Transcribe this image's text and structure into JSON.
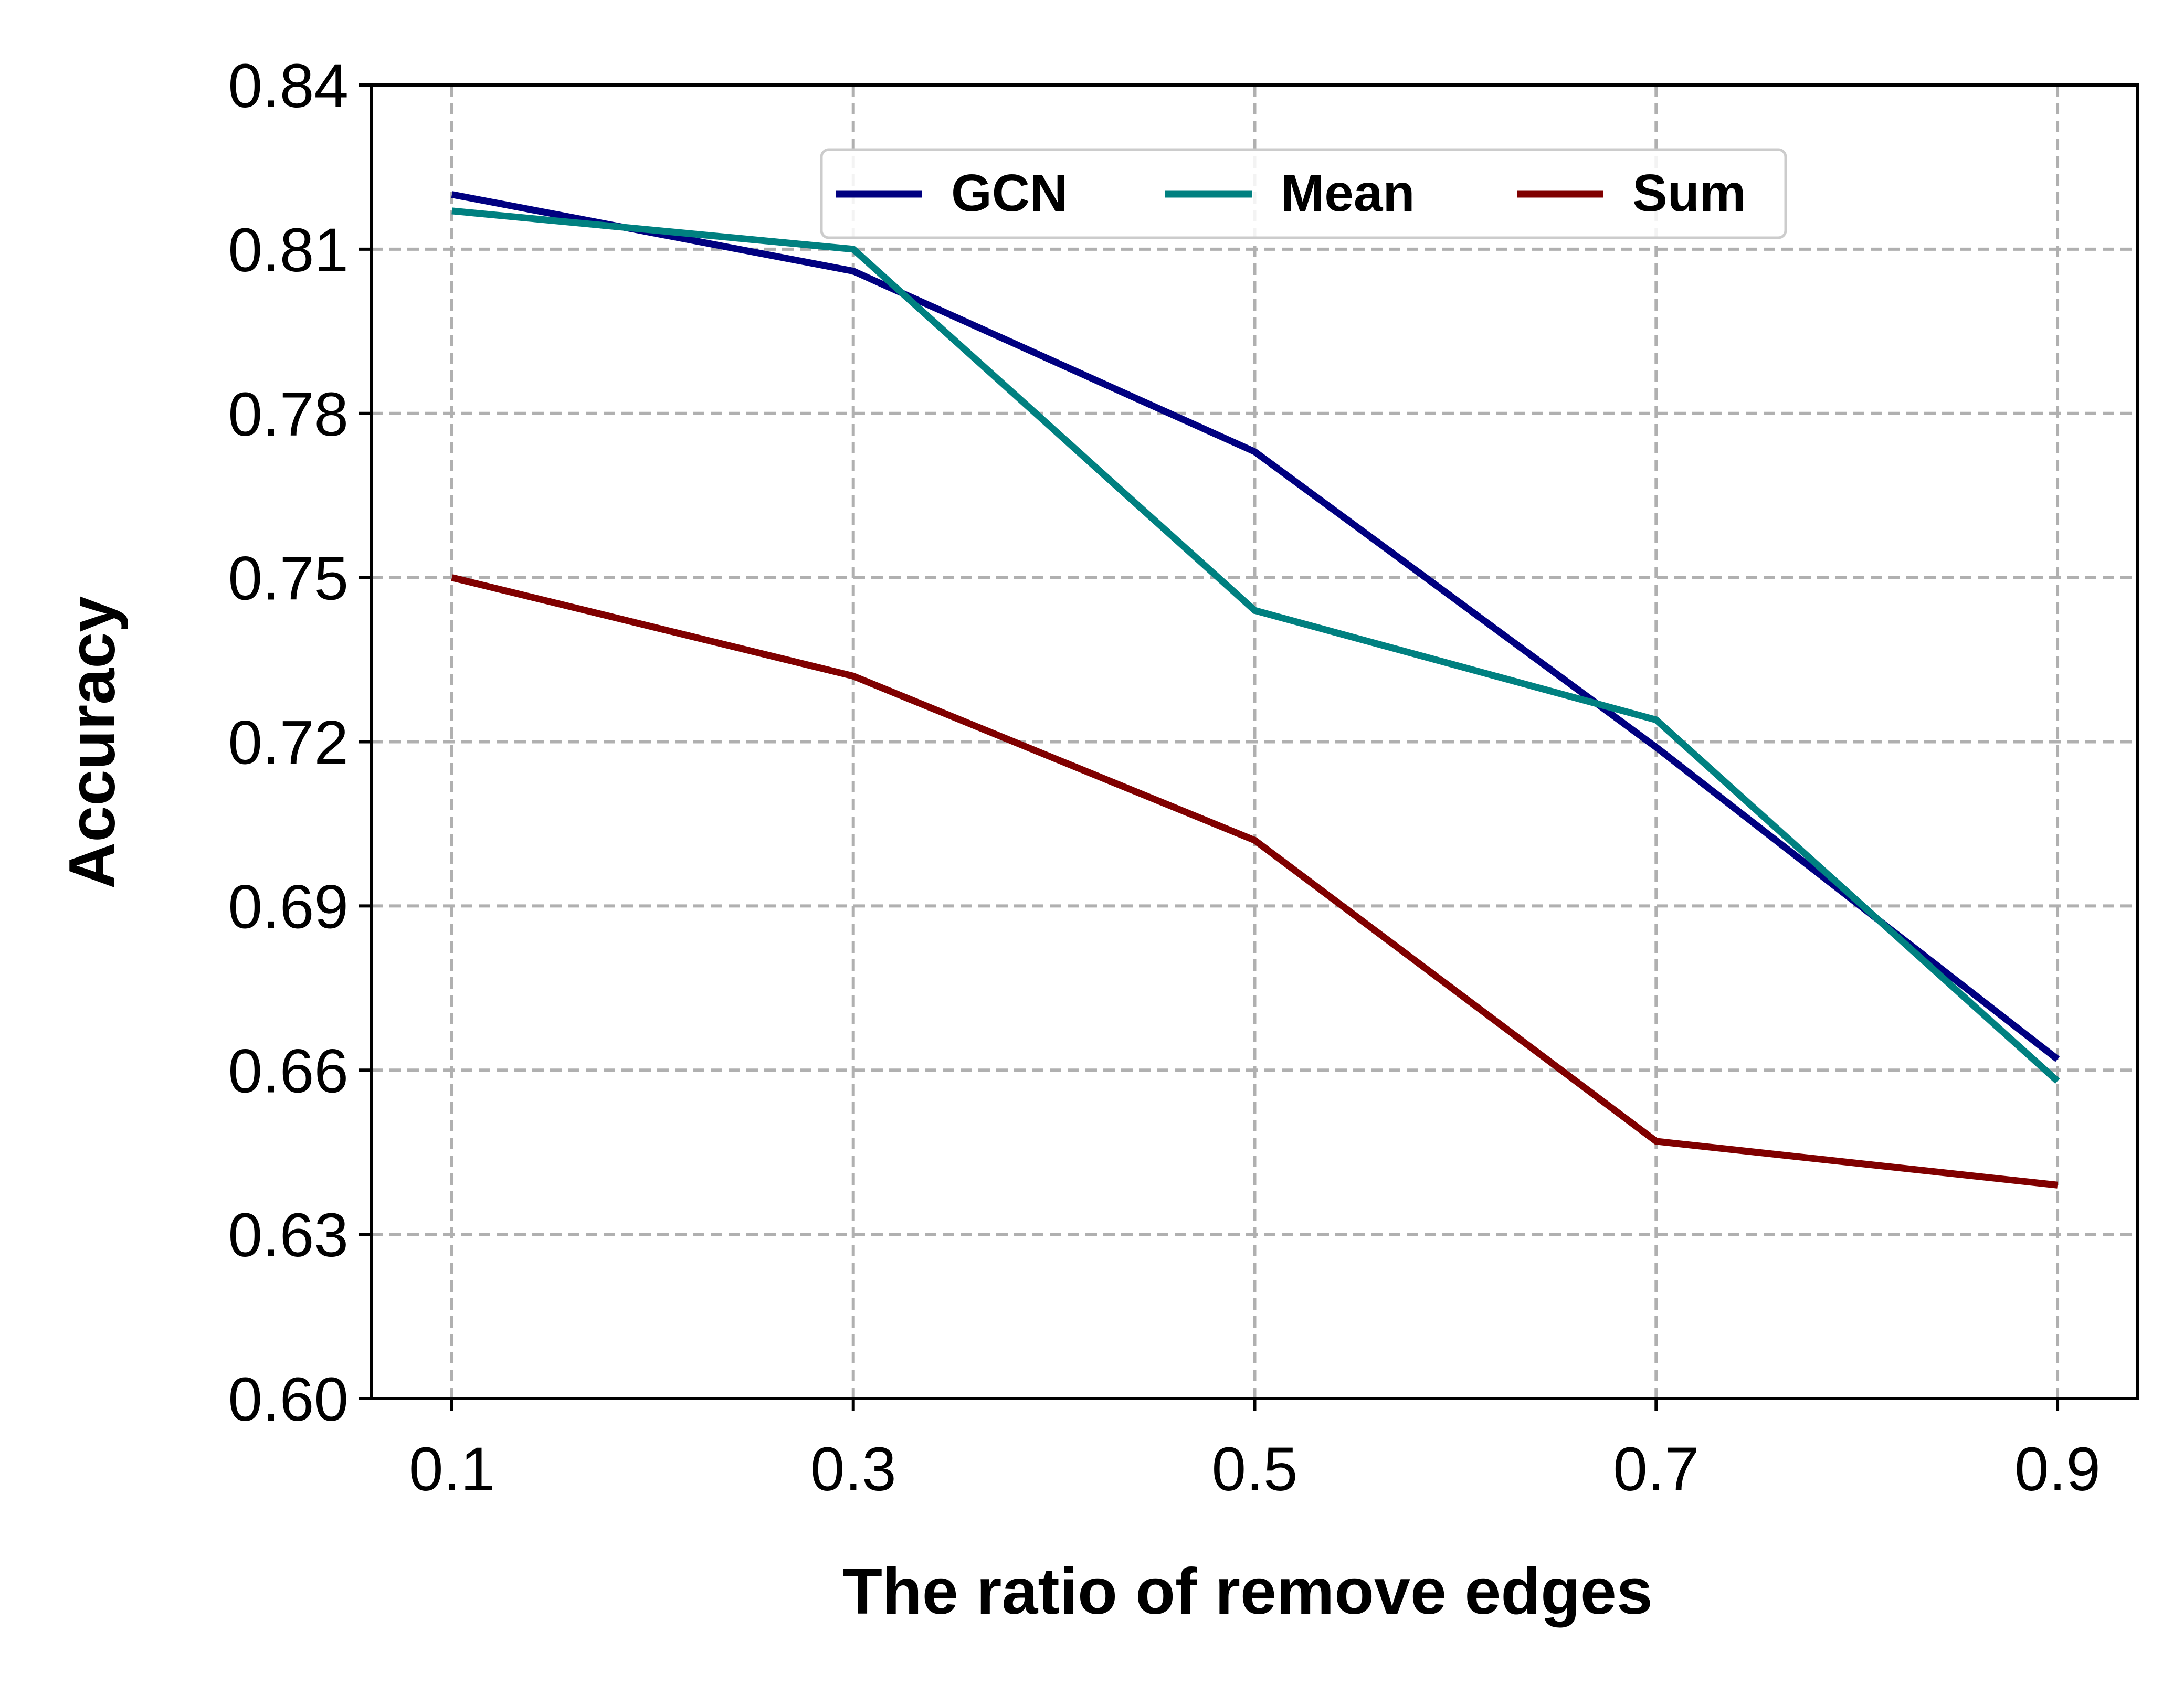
{
  "chart_data": {
    "type": "line",
    "title": "",
    "xlabel": "The ratio of remove edges",
    "ylabel": "Accuracy",
    "x": [
      0.1,
      0.3,
      0.5,
      0.7,
      0.9
    ],
    "x_tick_labels": [
      "0.1",
      "0.3",
      "0.5",
      "0.7",
      "0.9"
    ],
    "y_tick_labels": [
      "0.60",
      "0.63",
      "0.66",
      "0.69",
      "0.72",
      "0.75",
      "0.78",
      "0.81",
      "0.84"
    ],
    "y_ticks": [
      0.6,
      0.63,
      0.66,
      0.69,
      0.72,
      0.75,
      0.78,
      0.81,
      0.84
    ],
    "xlim": [
      0.06,
      0.94
    ],
    "ylim": [
      0.6,
      0.84
    ],
    "grid": true,
    "legend_position": "top-center",
    "series": [
      {
        "name": "GCN",
        "color": "#000080",
        "values": [
          0.82,
          0.806,
          0.773,
          0.719,
          0.662
        ]
      },
      {
        "name": "Mean",
        "color": "#008080",
        "values": [
          0.817,
          0.81,
          0.744,
          0.724,
          0.658
        ]
      },
      {
        "name": "Sum",
        "color": "#800000",
        "values": [
          0.75,
          0.732,
          0.702,
          0.647,
          0.639
        ]
      }
    ]
  }
}
